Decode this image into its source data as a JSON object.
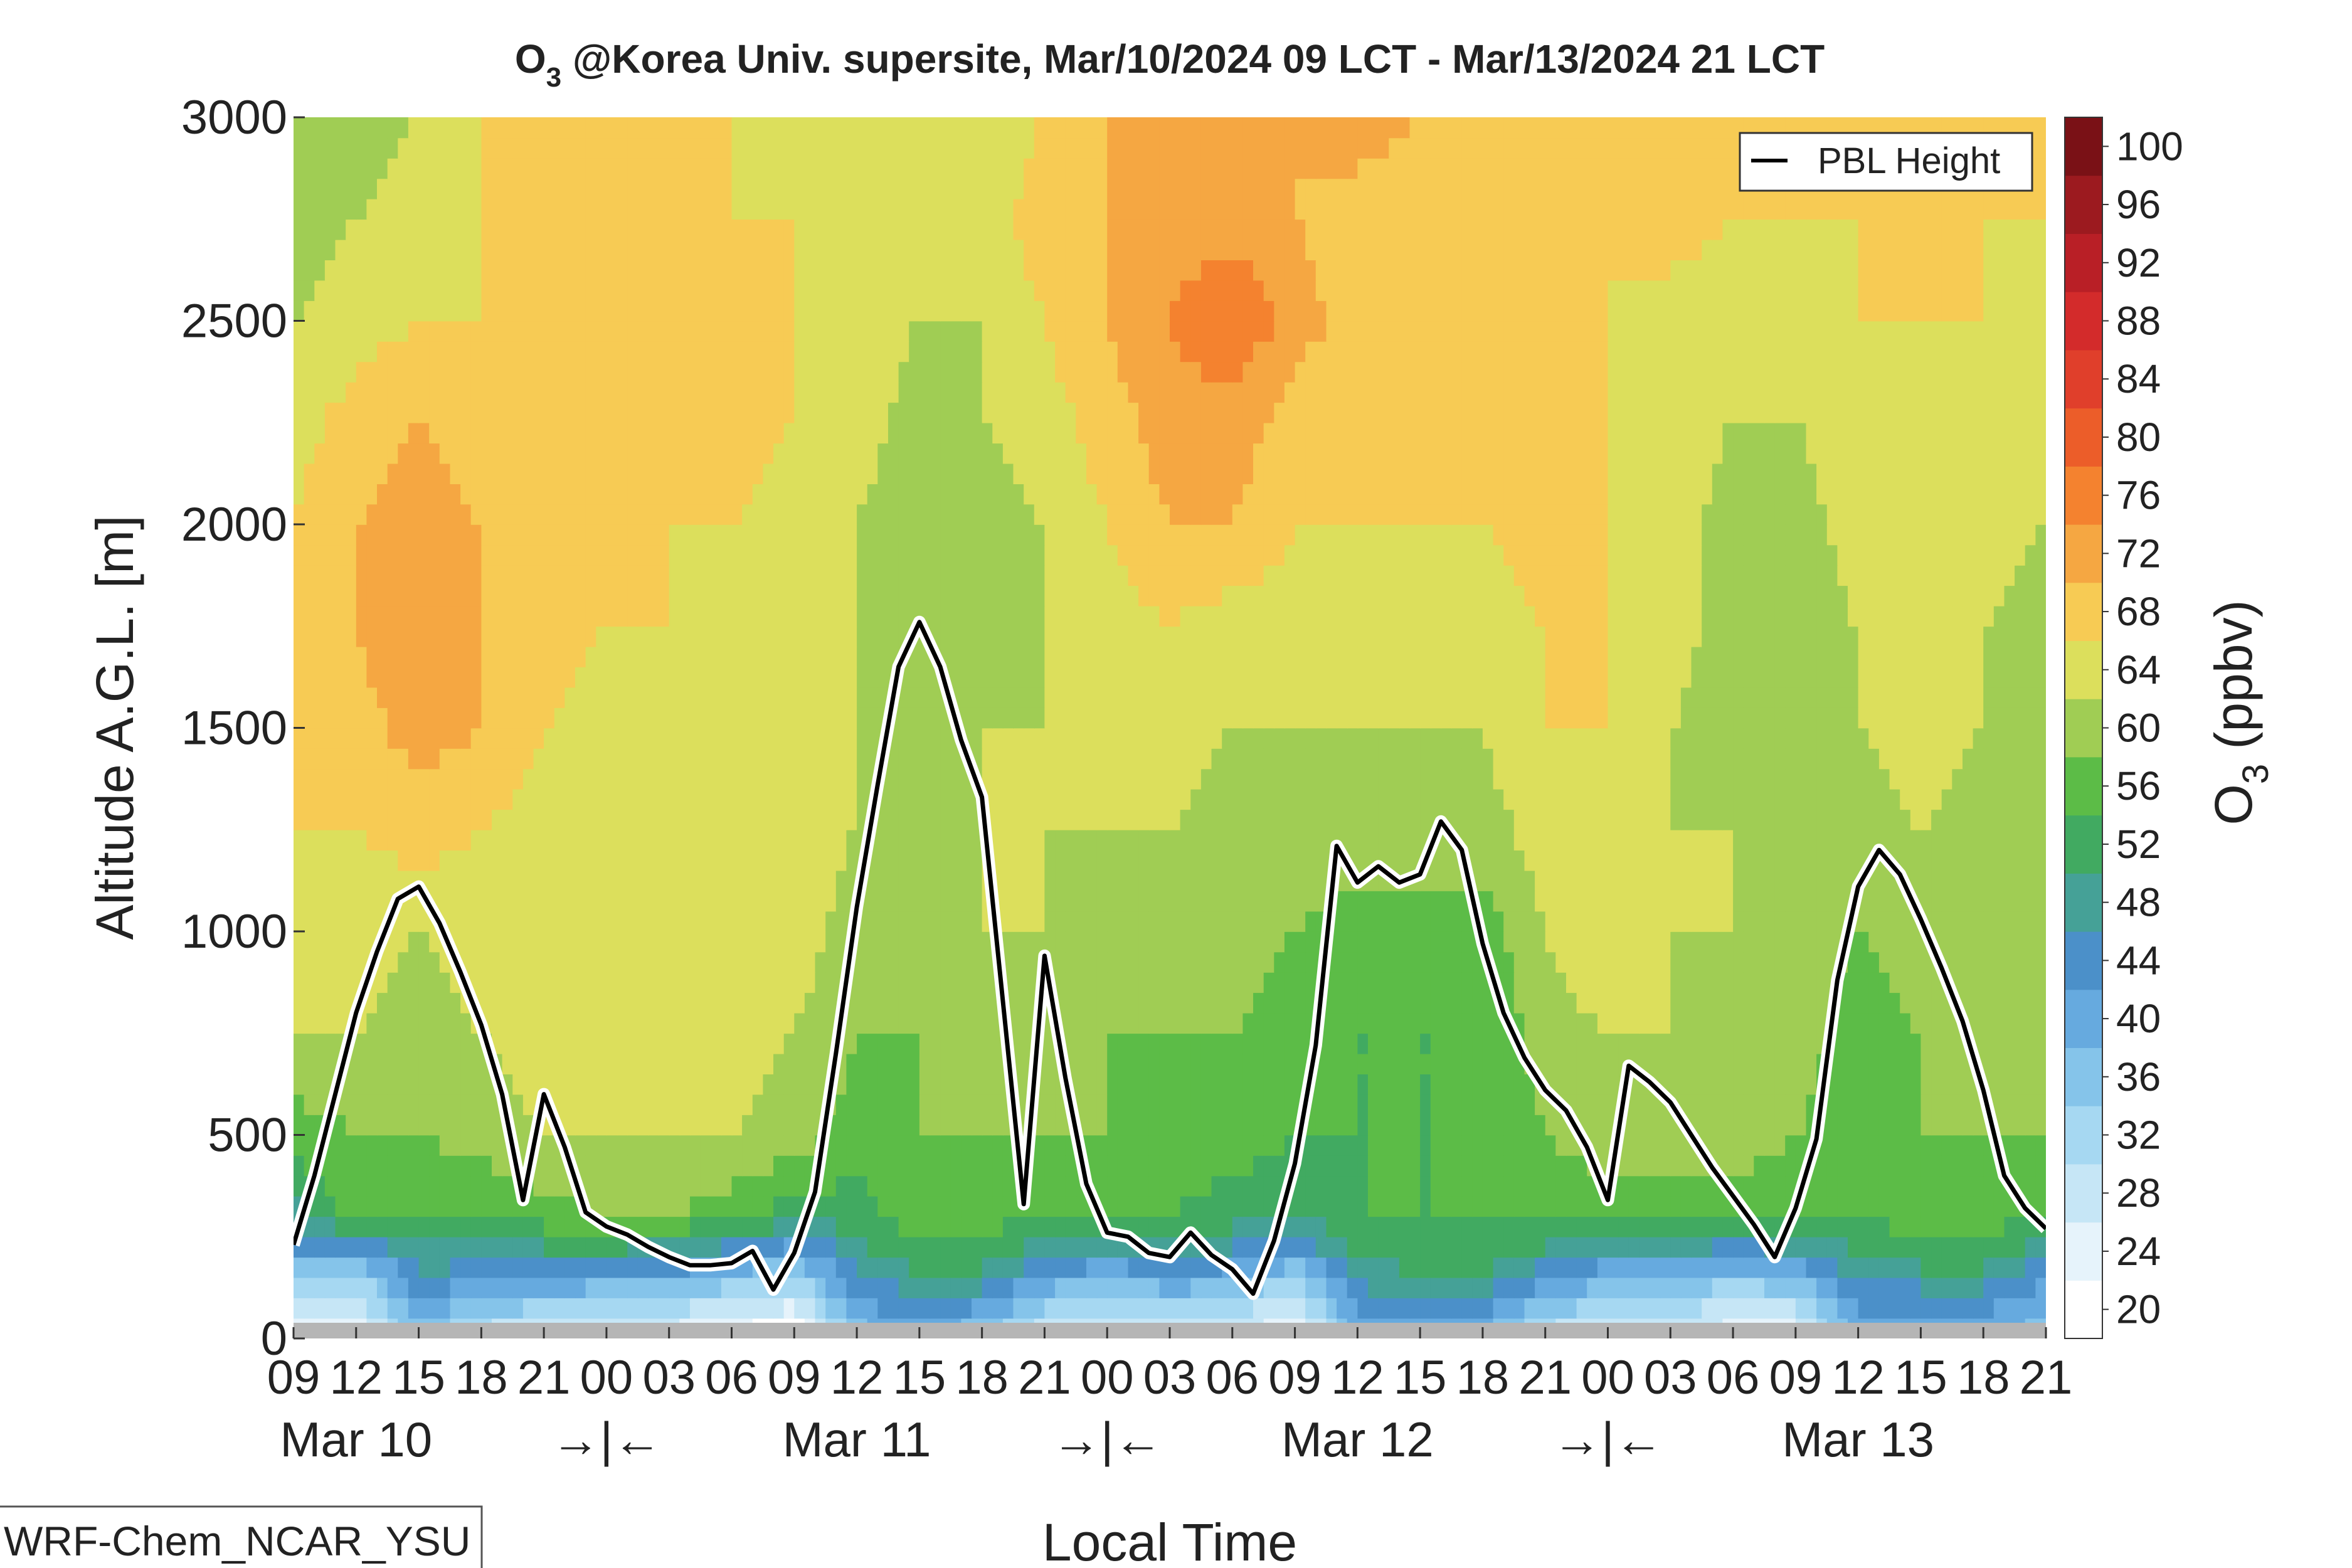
{
  "chart_data": {
    "type": "heatmap",
    "title": {
      "species": "O",
      "subscript": "3",
      "rest": " @Korea Univ. supersite, Mar/10/2024 09 LCT - Mar/13/2024 21 LCT"
    },
    "xlabel": "Local Time",
    "ylabel": "Altitude A.G.L. [m]",
    "colorbar_label": {
      "species": "O",
      "subscript": "3",
      "rest": " (ppbv)"
    },
    "xlim": [
      0,
      84
    ],
    "ylim": [
      0,
      3000
    ],
    "y_ticks": [
      0,
      500,
      1000,
      1500,
      2000,
      2500,
      3000
    ],
    "x_ticks": [
      {
        "hour": 0,
        "label": "09"
      },
      {
        "hour": 3,
        "label": "12"
      },
      {
        "hour": 6,
        "label": "15"
      },
      {
        "hour": 9,
        "label": "18"
      },
      {
        "hour": 12,
        "label": "21"
      },
      {
        "hour": 15,
        "label": "00"
      },
      {
        "hour": 18,
        "label": "03"
      },
      {
        "hour": 21,
        "label": "06"
      },
      {
        "hour": 24,
        "label": "09"
      },
      {
        "hour": 27,
        "label": "12"
      },
      {
        "hour": 30,
        "label": "15"
      },
      {
        "hour": 33,
        "label": "18"
      },
      {
        "hour": 36,
        "label": "21"
      },
      {
        "hour": 39,
        "label": "00"
      },
      {
        "hour": 42,
        "label": "03"
      },
      {
        "hour": 45,
        "label": "06"
      },
      {
        "hour": 48,
        "label": "09"
      },
      {
        "hour": 51,
        "label": "12"
      },
      {
        "hour": 54,
        "label": "15"
      },
      {
        "hour": 57,
        "label": "18"
      },
      {
        "hour": 60,
        "label": "21"
      },
      {
        "hour": 63,
        "label": "00"
      },
      {
        "hour": 66,
        "label": "03"
      },
      {
        "hour": 69,
        "label": "06"
      },
      {
        "hour": 72,
        "label": "09"
      },
      {
        "hour": 75,
        "label": "12"
      },
      {
        "hour": 78,
        "label": "15"
      },
      {
        "hour": 81,
        "label": "18"
      },
      {
        "hour": 84,
        "label": "21"
      }
    ],
    "date_labels": [
      {
        "hour": 3,
        "label": "Mar 10"
      },
      {
        "hour": 27,
        "label": "Mar 11"
      },
      {
        "hour": 51,
        "label": "Mar 12"
      },
      {
        "hour": 75,
        "label": "Mar 13"
      }
    ],
    "day_separators": [
      {
        "hour": 15,
        "label": "→|←"
      },
      {
        "hour": 39,
        "label": "→|←"
      },
      {
        "hour": 63,
        "label": "→|←"
      }
    ],
    "colorbar": {
      "levels": [
        20,
        24,
        28,
        32,
        36,
        40,
        44,
        48,
        52,
        56,
        60,
        64,
        68,
        72,
        76,
        80,
        84,
        88,
        92,
        96,
        100
      ],
      "tick_labels": [
        "20",
        "24",
        "28",
        "32",
        "36",
        "40",
        "44",
        "48",
        "52",
        "56",
        "60",
        "64",
        "68",
        "72",
        "76",
        "80",
        "84",
        "88",
        "92",
        "96",
        "100"
      ],
      "colors": [
        "#ffffff",
        "#e6f3fb",
        "#c6e6f6",
        "#a6d8f2",
        "#85c4ea",
        "#66aadf",
        "#4b90c9",
        "#45a197",
        "#41aa61",
        "#5cbc47",
        "#a0cd54",
        "#dcdf5c",
        "#f7cb54",
        "#f5a742",
        "#f4822f",
        "#ec5d29",
        "#e03f2b",
        "#d32b2b",
        "#b91f26",
        "#9c1a1f",
        "#7a1116"
      ]
    },
    "legend": {
      "position": "top-right",
      "entries": [
        "PBL Height"
      ]
    },
    "pbl_height": {
      "hour": [
        0,
        1,
        2,
        3,
        4,
        5,
        6,
        7,
        8,
        9,
        10,
        11,
        12,
        13,
        14,
        15,
        16,
        17,
        18,
        19,
        20,
        21,
        22,
        23,
        24,
        25,
        26,
        27,
        28,
        29,
        30,
        31,
        32,
        33,
        34,
        35,
        36,
        37,
        38,
        39,
        40,
        41,
        42,
        43,
        44,
        45,
        46,
        47,
        48,
        49,
        50,
        51,
        52,
        53,
        54,
        55,
        56,
        57,
        58,
        59,
        60,
        61,
        62,
        63,
        64,
        65,
        66,
        67,
        68,
        69,
        70,
        71,
        72,
        73,
        74,
        75,
        76,
        77,
        78,
        79,
        80,
        81,
        82,
        83,
        84
      ],
      "value": [
        230,
        400,
        600,
        800,
        950,
        1080,
        1110,
        1020,
        900,
        770,
        600,
        340,
        600,
        470,
        310,
        275,
        255,
        225,
        200,
        180,
        180,
        185,
        215,
        120,
        210,
        360,
        700,
        1060,
        1360,
        1650,
        1760,
        1650,
        1470,
        1330,
        830,
        330,
        940,
        640,
        380,
        260,
        250,
        210,
        200,
        260,
        205,
        170,
        110,
        240,
        430,
        720,
        1210,
        1120,
        1160,
        1120,
        1140,
        1270,
        1200,
        970,
        800,
        690,
        610,
        560,
        470,
        340,
        670,
        630,
        580,
        500,
        420,
        350,
        280,
        200,
        320,
        490,
        880,
        1110,
        1200,
        1140,
        1030,
        910,
        780,
        610,
        400,
        320,
        270
      ]
    },
    "o3_field": {
      "hours": [
        0,
        3,
        6,
        9,
        12,
        15,
        18,
        21,
        24,
        27,
        30,
        33,
        36,
        39,
        42,
        45,
        48,
        51,
        54,
        57,
        60,
        63,
        66,
        69,
        72,
        75,
        78,
        81,
        84
      ],
      "heights": [
        0,
        100,
        200,
        300,
        500,
        750,
        1000,
        1250,
        1500,
        1750,
        2000,
        2250,
        2500,
        2750,
        3000
      ],
      "values": [
        [
          26,
          24,
          38,
          30,
          26,
          26,
          26,
          22,
          20,
          38,
          42,
          36,
          28,
          26,
          30,
          30,
          22,
          40,
          40,
          40,
          30,
          28,
          28,
          26,
          26,
          42,
          40,
          40,
          38
        ],
        [
          32,
          30,
          44,
          40,
          38,
          36,
          36,
          32,
          30,
          44,
          48,
          46,
          38,
          34,
          38,
          36,
          30,
          46,
          48,
          48,
          40,
          36,
          36,
          32,
          34,
          46,
          46,
          46,
          42
        ],
        [
          42,
          40,
          50,
          50,
          50,
          50,
          48,
          44,
          40,
          50,
          54,
          54,
          48,
          46,
          48,
          46,
          42,
          52,
          54,
          54,
          50,
          46,
          46,
          44,
          46,
          52,
          54,
          54,
          48
        ],
        [
          50,
          58,
          56,
          56,
          58,
          60,
          60,
          58,
          54,
          54,
          58,
          58,
          56,
          56,
          56,
          54,
          52,
          56,
          56,
          56,
          58,
          58,
          58,
          58,
          56,
          56,
          58,
          58,
          56
        ],
        [
          58,
          60,
          60,
          62,
          64,
          64,
          64,
          64,
          62,
          58,
          60,
          60,
          60,
          60,
          58,
          58,
          56,
          56,
          56,
          56,
          60,
          62,
          62,
          62,
          60,
          58,
          60,
          60,
          60
        ],
        [
          64,
          64,
          62,
          64,
          66,
          66,
          66,
          66,
          64,
          60,
          60,
          62,
          62,
          60,
          60,
          60,
          58,
          56,
          56,
          56,
          62,
          64,
          64,
          62,
          62,
          58,
          60,
          62,
          62
        ],
        [
          66,
          66,
          64,
          66,
          66,
          66,
          66,
          66,
          66,
          62,
          62,
          64,
          64,
          62,
          62,
          62,
          60,
          58,
          58,
          58,
          64,
          68,
          64,
          64,
          62,
          60,
          62,
          62,
          62
        ],
        [
          68,
          68,
          70,
          68,
          66,
          66,
          66,
          66,
          66,
          64,
          62,
          64,
          64,
          64,
          64,
          62,
          62,
          62,
          62,
          62,
          66,
          68,
          64,
          64,
          64,
          62,
          64,
          62,
          62
        ],
        [
          68,
          70,
          74,
          72,
          68,
          66,
          66,
          66,
          66,
          64,
          60,
          64,
          64,
          64,
          66,
          64,
          64,
          64,
          64,
          64,
          68,
          68,
          64,
          62,
          62,
          64,
          66,
          64,
          62
        ],
        [
          68,
          72,
          76,
          72,
          70,
          68,
          68,
          66,
          66,
          64,
          60,
          62,
          64,
          66,
          68,
          66,
          66,
          66,
          66,
          66,
          68,
          68,
          66,
          62,
          62,
          64,
          66,
          64,
          62
        ],
        [
          68,
          72,
          74,
          72,
          70,
          68,
          68,
          68,
          66,
          64,
          60,
          62,
          64,
          68,
          72,
          72,
          68,
          68,
          68,
          68,
          70,
          68,
          66,
          62,
          62,
          66,
          66,
          66,
          64
        ],
        [
          66,
          70,
          72,
          70,
          68,
          68,
          68,
          70,
          68,
          66,
          62,
          64,
          66,
          70,
          74,
          74,
          70,
          68,
          68,
          68,
          68,
          68,
          66,
          64,
          64,
          66,
          68,
          66,
          66
        ],
        [
          64,
          66,
          68,
          68,
          68,
          68,
          68,
          68,
          68,
          66,
          64,
          64,
          68,
          72,
          76,
          80,
          74,
          70,
          68,
          68,
          68,
          68,
          66,
          66,
          66,
          68,
          68,
          68,
          66
        ],
        [
          62,
          64,
          66,
          68,
          68,
          68,
          68,
          68,
          68,
          66,
          64,
          66,
          70,
          72,
          74,
          74,
          72,
          70,
          70,
          68,
          68,
          68,
          70,
          68,
          68,
          68,
          68,
          68,
          68
        ],
        [
          60,
          62,
          64,
          68,
          68,
          68,
          68,
          68,
          66,
          66,
          64,
          66,
          68,
          72,
          72,
          72,
          72,
          74,
          72,
          70,
          68,
          70,
          72,
          70,
          68,
          68,
          70,
          68,
          68
        ]
      ]
    }
  },
  "model_tag": "WRF-Chem_NCAR_YSU"
}
